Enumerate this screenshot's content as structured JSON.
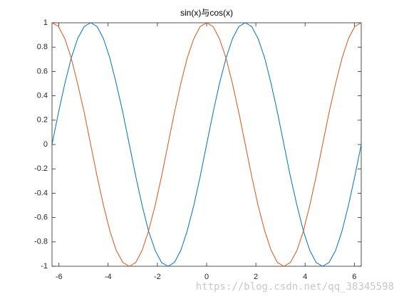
{
  "chart_data": {
    "type": "line",
    "title": "sin(x)与cos(x)",
    "x": [
      -6.28,
      -6.02,
      -5.76,
      -5.5,
      -5.24,
      -4.97,
      -4.71,
      -4.45,
      -4.19,
      -3.93,
      -3.67,
      -3.4,
      -3.14,
      -2.88,
      -2.62,
      -2.36,
      -2.09,
      -1.83,
      -1.57,
      -1.31,
      -1.05,
      -0.79,
      -0.52,
      -0.26,
      0,
      0.26,
      0.52,
      0.79,
      1.05,
      1.31,
      1.57,
      1.83,
      2.09,
      2.36,
      2.62,
      2.88,
      3.14,
      3.4,
      3.67,
      3.93,
      4.19,
      4.45,
      4.71,
      4.97,
      5.24,
      5.5,
      5.76,
      6.02,
      6.28
    ],
    "series": [
      {
        "color": "#0072bd",
        "values": [
          0,
          0.26,
          0.5,
          0.71,
          0.87,
          0.97,
          1,
          0.97,
          0.87,
          0.71,
          0.5,
          0.26,
          0,
          -0.26,
          -0.5,
          -0.71,
          -0.87,
          -0.97,
          -1,
          -0.97,
          -0.87,
          -0.71,
          -0.5,
          -0.26,
          0,
          0.26,
          0.5,
          0.71,
          0.87,
          0.97,
          1,
          0.97,
          0.87,
          0.71,
          0.5,
          0.26,
          0,
          -0.26,
          -0.5,
          -0.71,
          -0.87,
          -0.97,
          -1,
          -0.97,
          -0.87,
          -0.71,
          -0.5,
          -0.26,
          0
        ]
      },
      {
        "color": "#d95319",
        "values": [
          1,
          0.97,
          0.87,
          0.71,
          0.5,
          0.26,
          0,
          -0.26,
          -0.5,
          -0.71,
          -0.87,
          -0.97,
          -1,
          -0.97,
          -0.87,
          -0.71,
          -0.5,
          -0.26,
          0,
          0.26,
          0.5,
          0.71,
          0.87,
          0.97,
          1,
          0.97,
          0.87,
          0.71,
          0.5,
          0.26,
          0,
          -0.26,
          -0.5,
          -0.71,
          -0.87,
          -0.97,
          -1,
          -0.97,
          -0.87,
          -0.71,
          -0.5,
          -0.26,
          0,
          0.26,
          0.5,
          0.71,
          0.87,
          0.97,
          1
        ]
      }
    ],
    "xlim": [
      -6.28,
      6.28
    ],
    "xticks": [
      -6,
      -4,
      -2,
      0,
      2,
      4,
      6
    ],
    "ylim": [
      -1,
      1
    ],
    "yticks": [
      -1,
      -0.8,
      -0.6,
      -0.4,
      -0.2,
      0,
      0.2,
      0.4,
      0.6,
      0.8,
      1
    ],
    "grid": false
  },
  "watermark": "https://blog.csdn.net/qq_38345598"
}
